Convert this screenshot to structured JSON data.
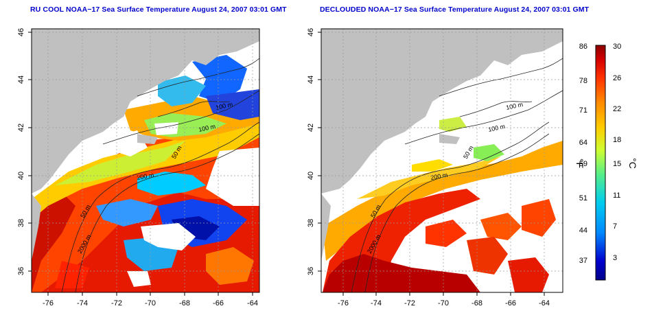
{
  "panels": [
    {
      "title": "RU COOL NOAA−17 Sea Surface Temperature August 24, 2007 03:01 GMT",
      "x_ticks": [
        "-76",
        "-74",
        "-72",
        "-70",
        "-68",
        "-66",
        "-64"
      ],
      "y_ticks": [
        "46",
        "44",
        "42",
        "40",
        "38",
        "36"
      ],
      "contour_labels": [
        "100 m",
        "100 m",
        "50 m",
        "200 m",
        "50 m",
        "2000 m"
      ]
    },
    {
      "title": "DECLOUDED NOAA−17 Sea Surface Temperature August 24, 2007 03:01 GMT",
      "x_ticks": [
        "-76",
        "-74",
        "-72",
        "-70",
        "-68",
        "-66",
        "-64"
      ],
      "y_ticks": [
        "46",
        "44",
        "42",
        "40",
        "38",
        "36"
      ],
      "contour_labels": [
        "100 m",
        "100 m",
        "50 m",
        "200 m",
        "50 m",
        "2000 m"
      ]
    }
  ],
  "colorbar": {
    "fahrenheit_ticks": [
      "86",
      "78",
      "71",
      "64",
      "59",
      "51",
      "44",
      "37"
    ],
    "celsius_ticks": [
      "30",
      "26",
      "22",
      "18",
      "15",
      "11",
      "7",
      "3"
    ],
    "fahrenheit_unit": "°F",
    "celsius_unit": "°C",
    "colors": [
      "#8b0000",
      "#d40000",
      "#ff3300",
      "#ff8800",
      "#ffcc00",
      "#ccff33",
      "#55ee88",
      "#00ccee",
      "#0088ff",
      "#0000cc",
      "#000088"
    ]
  },
  "colors": {
    "land": "#c0c0c0",
    "title": "#0000cc",
    "cloud": "#ffffff"
  }
}
